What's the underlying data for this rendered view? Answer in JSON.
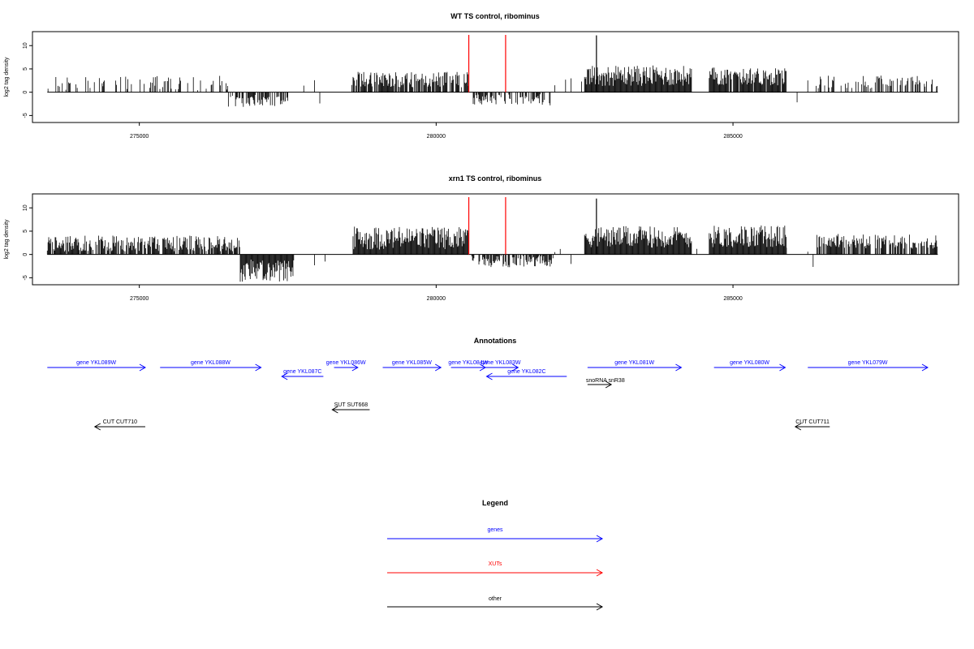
{
  "chart_data": [
    {
      "type": "bar",
      "title": "WT TS control, ribominus",
      "xlabel": "",
      "ylabel": "log2 tag density",
      "xlim": [
        273200,
        288800
      ],
      "ylim": [
        -6.5,
        13.0
      ],
      "xticks": [
        275000,
        280000,
        285000
      ],
      "xtick_labels": [
        "275000",
        "280000",
        "285000"
      ],
      "yticks": [
        -5,
        0,
        5,
        10
      ],
      "ytick_labels": [
        "-5",
        "0",
        "5",
        "10"
      ],
      "baseline": 0,
      "x_range": [
        273450,
        288450
      ],
      "red_markers": [
        280550,
        281170
      ],
      "red_marker_top": 12.3,
      "regions": [
        {
          "x0": 273450,
          "x1": 276500,
          "mean": 1.6,
          "spread": 1.6,
          "density": 0.25
        },
        {
          "x0": 276500,
          "x1": 277500,
          "mean": -1.6,
          "spread": 1.3,
          "density": 0.55
        },
        {
          "x0": 278600,
          "x1": 280550,
          "mean": 2.4,
          "spread": 1.7,
          "density": 0.8
        },
        {
          "x0": 280600,
          "x1": 281950,
          "mean": -1.4,
          "spread": 1.2,
          "density": 0.55
        },
        {
          "x0": 282500,
          "x1": 284300,
          "mean": 3.1,
          "spread": 2.2,
          "density": 1.0
        },
        {
          "x0": 284600,
          "x1": 285900,
          "mean": 3.0,
          "spread": 2.0,
          "density": 0.95
        },
        {
          "x0": 286400,
          "x1": 288450,
          "mean": 1.9,
          "spread": 1.4,
          "density": 0.35
        }
      ],
      "spikes": [
        {
          "x": 282700,
          "y": 12.2
        }
      ]
    },
    {
      "type": "bar",
      "title": "xrn1 TS control, ribominus",
      "xlabel": "",
      "ylabel": "log2 tag density",
      "xlim": [
        273200,
        288800
      ],
      "ylim": [
        -6.5,
        13.0
      ],
      "xticks": [
        275000,
        280000,
        285000
      ],
      "xtick_labels": [
        "275000",
        "280000",
        "285000"
      ],
      "yticks": [
        -5,
        0,
        5,
        10
      ],
      "ytick_labels": [
        "-5",
        "0",
        "5",
        "10"
      ],
      "baseline": 0,
      "x_range": [
        273450,
        288450
      ],
      "red_markers": [
        280550,
        281170
      ],
      "red_marker_top": 12.3,
      "regions": [
        {
          "x0": 273450,
          "x1": 276700,
          "mean": 2.0,
          "spread": 1.7,
          "density": 0.85
        },
        {
          "x0": 276700,
          "x1": 277600,
          "mean": -3.0,
          "spread": 2.4,
          "density": 1.0
        },
        {
          "x0": 278600,
          "x1": 280550,
          "mean": 3.0,
          "spread": 2.5,
          "density": 1.0
        },
        {
          "x0": 280600,
          "x1": 282000,
          "mean": -1.3,
          "spread": 1.2,
          "density": 0.7
        },
        {
          "x0": 282500,
          "x1": 284300,
          "mean": 3.3,
          "spread": 2.3,
          "density": 1.0
        },
        {
          "x0": 284600,
          "x1": 285900,
          "mean": 3.4,
          "spread": 2.4,
          "density": 1.0
        },
        {
          "x0": 286400,
          "x1": 288450,
          "mean": 2.5,
          "spread": 1.6,
          "density": 0.75
        }
      ],
      "spikes": [
        {
          "x": 282700,
          "y": 12.0
        }
      ]
    }
  ],
  "annotations": {
    "title": "Annotations",
    "xlim": [
      273200,
      288800
    ],
    "features": [
      {
        "label": "gene YKL089W",
        "x0": 273450,
        "x1": 275100,
        "row": 0,
        "strand": "+",
        "color": "#0000ff"
      },
      {
        "label": "gene YKL088W",
        "x0": 275350,
        "x1": 277050,
        "row": 0,
        "strand": "+",
        "color": "#0000ff"
      },
      {
        "label": "gene YKL087C",
        "x0": 277400,
        "x1": 278100,
        "row": 1,
        "strand": "-",
        "color": "#0000ff"
      },
      {
        "label": "gene YKL086W",
        "x0": 278280,
        "x1": 278680,
        "row": 0,
        "strand": "+",
        "color": "#0000ff"
      },
      {
        "label": "gene YKL085W",
        "x0": 279100,
        "x1": 280080,
        "row": 0,
        "strand": "+",
        "color": "#0000ff"
      },
      {
        "label": "gene YKL084W",
        "x0": 280250,
        "x1": 280830,
        "row": 0,
        "strand": "+",
        "color": "#0000ff"
      },
      {
        "label": "gene YKL083W",
        "x0": 280800,
        "x1": 281380,
        "row": 0,
        "strand": "+",
        "color": "#0000ff"
      },
      {
        "label": "gene YKL082C",
        "x0": 280850,
        "x1": 282200,
        "row": 1,
        "strand": "-",
        "color": "#0000ff"
      },
      {
        "label": "gene YKL081W",
        "x0": 282550,
        "x1": 284130,
        "row": 0,
        "strand": "+",
        "color": "#0000ff"
      },
      {
        "label": "gene YKL080W",
        "x0": 284680,
        "x1": 285880,
        "row": 0,
        "strand": "+",
        "color": "#0000ff"
      },
      {
        "label": "gene YKL079W",
        "x0": 286260,
        "x1": 288280,
        "row": 0,
        "strand": "+",
        "color": "#0000ff"
      },
      {
        "label": "snoRNA snR38",
        "x0": 282550,
        "x1": 282950,
        "row": 2,
        "strand": "+",
        "color": "#000000"
      },
      {
        "label": "SUT SUT668",
        "x0": 278250,
        "x1": 278880,
        "row": 3,
        "strand": "-",
        "color": "#000000"
      },
      {
        "label": "CUT CUT710",
        "x0": 274250,
        "x1": 275100,
        "row": 4,
        "strand": "-",
        "color": "#000000"
      },
      {
        "label": "CUT CUT711",
        "x0": 286050,
        "x1": 286630,
        "row": 4,
        "strand": "-",
        "color": "#000000"
      }
    ]
  },
  "legend": {
    "title": "Legend",
    "items": [
      {
        "label": "genes",
        "color": "#0000ff"
      },
      {
        "label": "XUTs",
        "color": "#ff0000"
      },
      {
        "label": "other",
        "color": "#000000"
      }
    ]
  },
  "colors": {
    "bars": "#000000",
    "xut_marker": "#ff0000",
    "gene": "#0000ff",
    "other": "#000000"
  }
}
